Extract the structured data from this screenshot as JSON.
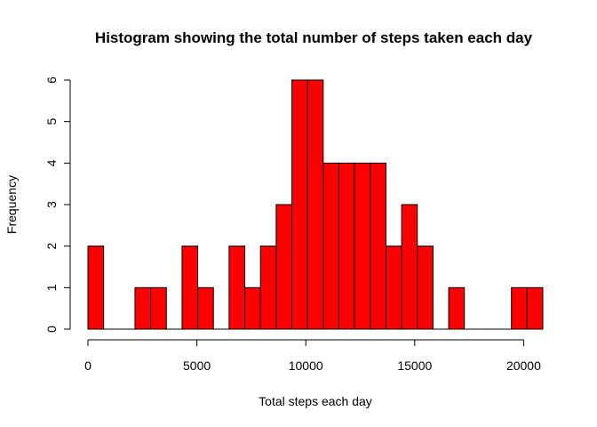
{
  "chart_data": {
    "type": "bar",
    "title": "Histogram showing the total number of steps taken each day",
    "xlabel": "Total steps each day",
    "ylabel": "Frequency",
    "bin_width": 720,
    "bins": [
      {
        "start": 0,
        "end": 720,
        "count": 2
      },
      {
        "start": 720,
        "end": 1440,
        "count": 0
      },
      {
        "start": 1440,
        "end": 2160,
        "count": 0
      },
      {
        "start": 2160,
        "end": 2880,
        "count": 1
      },
      {
        "start": 2880,
        "end": 3600,
        "count": 1
      },
      {
        "start": 3600,
        "end": 4320,
        "count": 0
      },
      {
        "start": 4320,
        "end": 5040,
        "count": 2
      },
      {
        "start": 5040,
        "end": 5760,
        "count": 1
      },
      {
        "start": 5760,
        "end": 6480,
        "count": 0
      },
      {
        "start": 6480,
        "end": 7200,
        "count": 2
      },
      {
        "start": 7200,
        "end": 7920,
        "count": 1
      },
      {
        "start": 7920,
        "end": 8640,
        "count": 2
      },
      {
        "start": 8640,
        "end": 9360,
        "count": 3
      },
      {
        "start": 9360,
        "end": 10080,
        "count": 6
      },
      {
        "start": 10080,
        "end": 10800,
        "count": 6
      },
      {
        "start": 10800,
        "end": 11520,
        "count": 4
      },
      {
        "start": 11520,
        "end": 12240,
        "count": 4
      },
      {
        "start": 12240,
        "end": 12960,
        "count": 4
      },
      {
        "start": 12960,
        "end": 13680,
        "count": 4
      },
      {
        "start": 13680,
        "end": 14400,
        "count": 2
      },
      {
        "start": 14400,
        "end": 15120,
        "count": 3
      },
      {
        "start": 15120,
        "end": 15840,
        "count": 2
      },
      {
        "start": 15840,
        "end": 16560,
        "count": 0
      },
      {
        "start": 16560,
        "end": 17280,
        "count": 1
      },
      {
        "start": 17280,
        "end": 18000,
        "count": 0
      },
      {
        "start": 18000,
        "end": 18720,
        "count": 0
      },
      {
        "start": 18720,
        "end": 19440,
        "count": 0
      },
      {
        "start": 19440,
        "end": 20160,
        "count": 1
      },
      {
        "start": 20160,
        "end": 20880,
        "count": 1
      }
    ],
    "xticks": [
      0,
      5000,
      10000,
      15000,
      20000
    ],
    "yticks": [
      0,
      1,
      2,
      3,
      4,
      5,
      6
    ],
    "xlim": [
      0,
      20880
    ],
    "ylim": [
      0,
      6
    ],
    "bar_color": "#ff0000",
    "grid": false,
    "legend": "none"
  }
}
